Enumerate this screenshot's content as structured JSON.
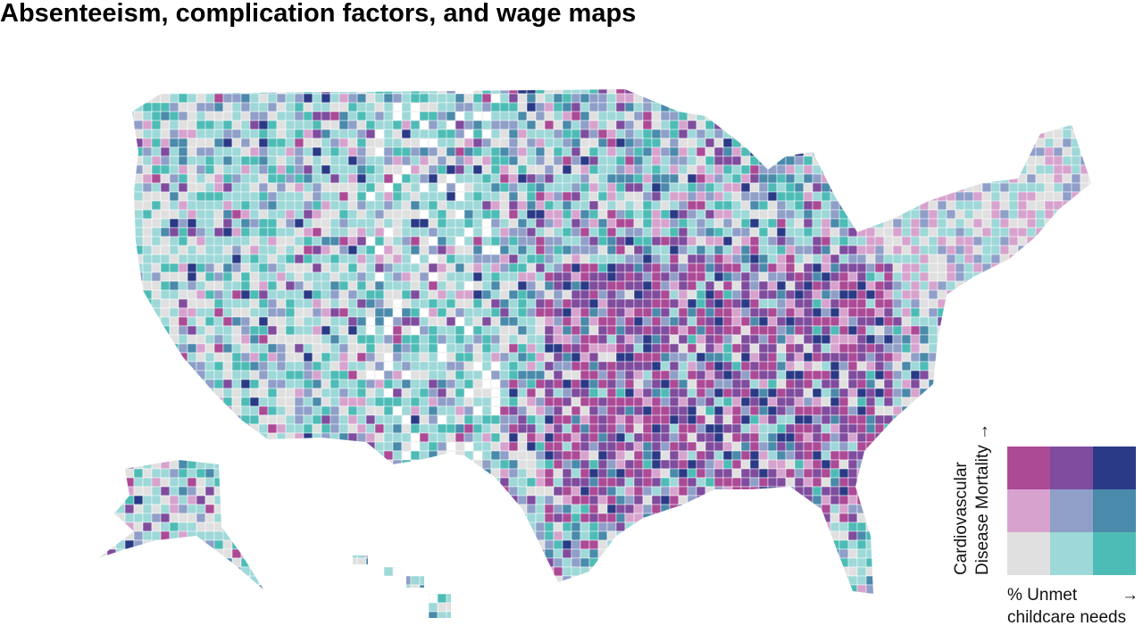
{
  "header": {
    "title": "Absenteeism, complication factors, and wage maps"
  },
  "legend": {
    "y_label": [
      "Cardiovascular",
      "Disease Mortality →"
    ],
    "x_label": [
      "% Unmet",
      "childcare needs"
    ],
    "x_arrow": "→",
    "colors": [
      [
        "#ac4a96",
        "#7f4c9e",
        "#2b3a86"
      ],
      [
        "#d7a3ce",
        "#8f9fc8",
        "#4a8aab"
      ],
      [
        "#e0e0e0",
        "#9ed8d8",
        "#4ebcb6"
      ]
    ]
  }
}
